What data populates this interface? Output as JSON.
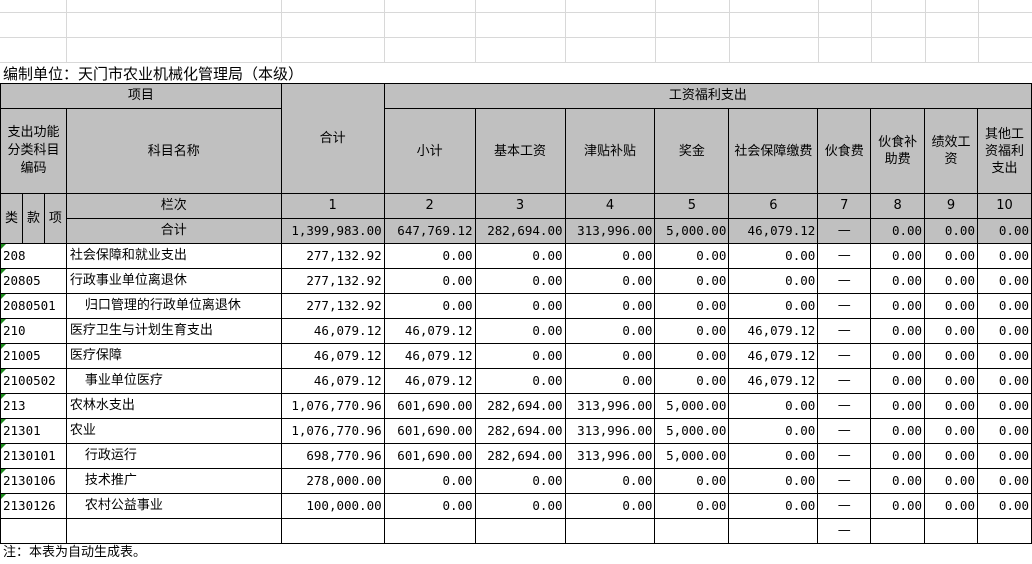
{
  "unit_label": "编制单位：天门市农业机械化管理局（本级）",
  "header": {
    "project": "项目",
    "total": "合计",
    "group": "工资福利支出",
    "code_label": "支出功能分类科目编码",
    "subject_name": "科目名称",
    "cols": [
      "小计",
      "基本工资",
      "津贴补贴",
      "奖金",
      "社会保障缴费",
      "伙食费",
      "伙食补助费",
      "绩效工资",
      "其他工资福利支出"
    ],
    "lei": "类",
    "kuan": "款",
    "xiang": "项",
    "lanci": "栏次",
    "col_numbers": [
      "1",
      "2",
      "3",
      "4",
      "5",
      "6",
      "7",
      "8",
      "9",
      "10"
    ]
  },
  "total_row": {
    "label": "合计",
    "values": [
      "1,399,983.00",
      "647,769.12",
      "282,694.00",
      "313,996.00",
      "5,000.00",
      "46,079.12",
      "—",
      "0.00",
      "0.00",
      "0.00"
    ]
  },
  "rows": [
    {
      "code": "208",
      "name": "社会保障和就业支出",
      "indent": false,
      "values": [
        "277,132.92",
        "0.00",
        "0.00",
        "0.00",
        "0.00",
        "0.00",
        "—",
        "0.00",
        "0.00",
        "0.00"
      ]
    },
    {
      "code": "20805",
      "name": "行政事业单位离退休",
      "indent": false,
      "values": [
        "277,132.92",
        "0.00",
        "0.00",
        "0.00",
        "0.00",
        "0.00",
        "—",
        "0.00",
        "0.00",
        "0.00"
      ]
    },
    {
      "code": "2080501",
      "name": "归口管理的行政单位离退休",
      "indent": true,
      "values": [
        "277,132.92",
        "0.00",
        "0.00",
        "0.00",
        "0.00",
        "0.00",
        "—",
        "0.00",
        "0.00",
        "0.00"
      ]
    },
    {
      "code": "210",
      "name": "医疗卫生与计划生育支出",
      "indent": false,
      "values": [
        "46,079.12",
        "46,079.12",
        "0.00",
        "0.00",
        "0.00",
        "46,079.12",
        "—",
        "0.00",
        "0.00",
        "0.00"
      ]
    },
    {
      "code": "21005",
      "name": "医疗保障",
      "indent": false,
      "values": [
        "46,079.12",
        "46,079.12",
        "0.00",
        "0.00",
        "0.00",
        "46,079.12",
        "—",
        "0.00",
        "0.00",
        "0.00"
      ]
    },
    {
      "code": "2100502",
      "name": "事业单位医疗",
      "indent": true,
      "values": [
        "46,079.12",
        "46,079.12",
        "0.00",
        "0.00",
        "0.00",
        "46,079.12",
        "—",
        "0.00",
        "0.00",
        "0.00"
      ]
    },
    {
      "code": "213",
      "name": "农林水支出",
      "indent": false,
      "values": [
        "1,076,770.96",
        "601,690.00",
        "282,694.00",
        "313,996.00",
        "5,000.00",
        "0.00",
        "—",
        "0.00",
        "0.00",
        "0.00"
      ]
    },
    {
      "code": "21301",
      "name": "农业",
      "indent": false,
      "values": [
        "1,076,770.96",
        "601,690.00",
        "282,694.00",
        "313,996.00",
        "5,000.00",
        "0.00",
        "—",
        "0.00",
        "0.00",
        "0.00"
      ]
    },
    {
      "code": "2130101",
      "name": "行政运行",
      "indent": true,
      "values": [
        "698,770.96",
        "601,690.00",
        "282,694.00",
        "313,996.00",
        "5,000.00",
        "0.00",
        "—",
        "0.00",
        "0.00",
        "0.00"
      ]
    },
    {
      "code": "2130106",
      "name": "技术推广",
      "indent": true,
      "values": [
        "278,000.00",
        "0.00",
        "0.00",
        "0.00",
        "0.00",
        "0.00",
        "—",
        "0.00",
        "0.00",
        "0.00"
      ]
    },
    {
      "code": "2130126",
      "name": "农村公益事业",
      "indent": true,
      "values": [
        "100,000.00",
        "0.00",
        "0.00",
        "0.00",
        "0.00",
        "0.00",
        "—",
        "0.00",
        "0.00",
        "0.00"
      ]
    },
    {
      "code": "",
      "name": "",
      "indent": false,
      "values": [
        "",
        "",
        "",
        "",
        "",
        "",
        "—",
        "",
        "",
        ""
      ]
    }
  ],
  "note": "注：本表为自动生成表。"
}
